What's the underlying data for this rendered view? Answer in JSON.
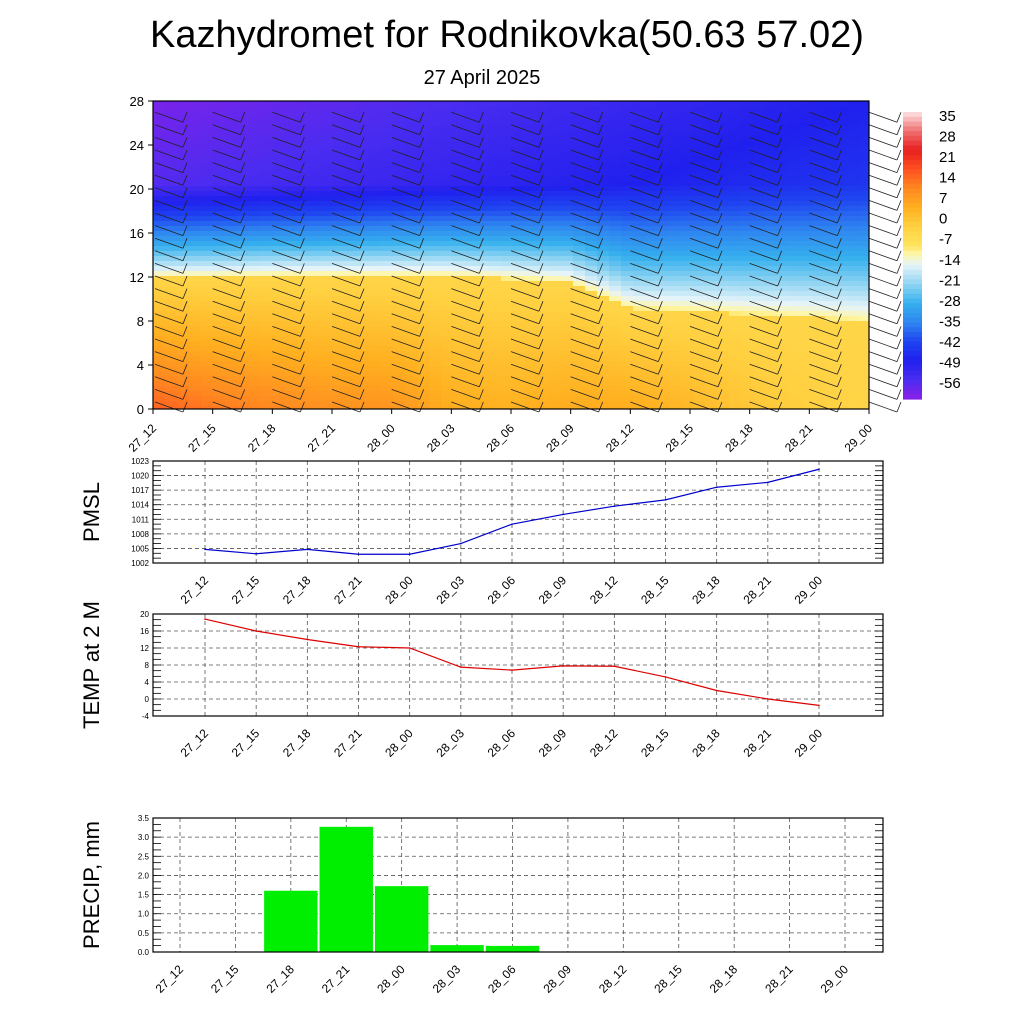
{
  "title": "Kazhydromet for Rodnikovka(50.63 57.02)",
  "subtitle": "27 April 2025",
  "time_labels": [
    "27_12",
    "27_15",
    "27_18",
    "27_21",
    "28_00",
    "28_03",
    "28_06",
    "28_09",
    "28_12",
    "28_15",
    "28_18",
    "28_21",
    "29_00"
  ],
  "colorbar": {
    "labels": [
      "35",
      "28",
      "21",
      "14",
      "7",
      "0",
      "-7",
      "-14",
      "-21",
      "-28",
      "-35",
      "-42",
      "-49",
      "-56"
    ],
    "range": [
      -63,
      42
    ]
  },
  "chart_data": [
    {
      "type": "heatmap",
      "name": "cross-section",
      "y_ticks": [
        "28",
        "24",
        "20",
        "16",
        "12",
        "8",
        "4",
        "0"
      ],
      "ylim": [
        0,
        28
      ],
      "freezing_level": [
        12,
        12,
        12.1,
        12.1,
        12.1,
        12.1,
        11.8,
        11.5,
        9.1,
        8.9,
        8.6,
        8.3,
        7.9
      ],
      "surface_temp": [
        19,
        16,
        14,
        12.3,
        12,
        7.5,
        6.8,
        7.8,
        7.7,
        5.2,
        2,
        0,
        -1.5
      ]
    },
    {
      "type": "line",
      "ylabel": "PMSL",
      "y_ticks": [
        "1023",
        "1020",
        "1017",
        "1014",
        "1011",
        "1008",
        "1005",
        "1002"
      ],
      "ylim": [
        1002,
        1023
      ],
      "values": [
        1004.8,
        1003.9,
        1004.8,
        1003.8,
        1003.8,
        1006,
        1010,
        1012,
        1013.7,
        1015,
        1017.6,
        1018.6,
        1021.3
      ],
      "color": "#0000cc"
    },
    {
      "type": "line",
      "ylabel": "TEMP at 2 M",
      "y_ticks": [
        "20",
        "16",
        "12",
        "8",
        "4",
        "0",
        "-4"
      ],
      "ylim": [
        -4,
        20
      ],
      "values": [
        18.8,
        16,
        14,
        12.3,
        12,
        7.5,
        6.8,
        7.8,
        7.7,
        5.2,
        2,
        0,
        -1.5
      ],
      "color": "#dd0000"
    },
    {
      "type": "bar",
      "ylabel": "PRECIP, mm",
      "y_ticks": [
        "3.5",
        "3.0",
        "2.5",
        "2.0",
        "1.5",
        "1.0",
        "0.5",
        "0.0"
      ],
      "ylim": [
        0,
        3.5
      ],
      "values": [
        0,
        0,
        1.6,
        3.27,
        1.72,
        0.18,
        0.16,
        0,
        0,
        0,
        0,
        0,
        0
      ],
      "color": "#00ee00"
    }
  ]
}
